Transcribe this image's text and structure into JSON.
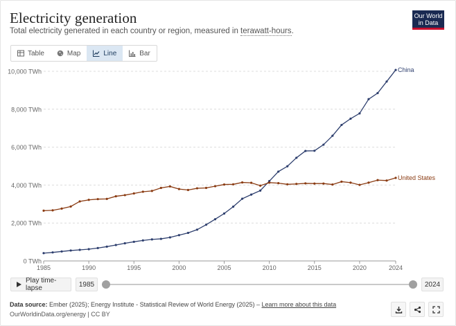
{
  "header": {
    "title": "Electricity generation",
    "subtitle_prefix": "Total electricity generated in each country or region, measured in ",
    "subtitle_term": "terawatt-hours",
    "subtitle_suffix": "."
  },
  "logo": {
    "line1": "Our World",
    "line2": "in Data",
    "bg": "#1a2a52",
    "accent": "#c8102e"
  },
  "tabs": [
    {
      "label": "Table",
      "icon": "table-icon",
      "active": false
    },
    {
      "label": "Map",
      "icon": "globe-icon",
      "active": false
    },
    {
      "label": "Line",
      "icon": "line-chart-icon",
      "active": true
    },
    {
      "label": "Bar",
      "icon": "bar-chart-icon",
      "active": false
    }
  ],
  "timeline": {
    "play_label": "Play time-lapse",
    "start": "1985",
    "end": "2024"
  },
  "footer": {
    "source_label": "Data source:",
    "source_text": " Ember (2025); Energy Institute - Statistical Review of World Energy (2025) – ",
    "learn_more": "Learn more about this data",
    "credit": "OurWorldinData.org/energy | CC BY"
  },
  "chart_data": {
    "type": "line",
    "ylim": [
      0,
      10000
    ],
    "xlim": [
      1985,
      2024
    ],
    "grid": "horizontal",
    "y_ticks": [
      {
        "value": 0,
        "label": "0 TWh"
      },
      {
        "value": 2000,
        "label": "2,000 TWh"
      },
      {
        "value": 4000,
        "label": "4,000 TWh"
      },
      {
        "value": 6000,
        "label": "6,000 TWh"
      },
      {
        "value": 8000,
        "label": "8,000 TWh"
      },
      {
        "value": 10000,
        "label": "10,000 TWh"
      }
    ],
    "x_ticks": [
      1985,
      1990,
      1995,
      2000,
      2005,
      2010,
      2015,
      2020,
      2024
    ],
    "x": [
      1985,
      1986,
      1987,
      1988,
      1989,
      1990,
      1991,
      1992,
      1993,
      1994,
      1995,
      1996,
      1997,
      1998,
      1999,
      2000,
      2001,
      2002,
      2003,
      2004,
      2005,
      2006,
      2007,
      2008,
      2009,
      2010,
      2011,
      2012,
      2013,
      2014,
      2015,
      2016,
      2017,
      2018,
      2019,
      2020,
      2021,
      2022,
      2023,
      2024
    ],
    "series": [
      {
        "name": "China",
        "color": "#2e3f6e",
        "values": [
          410,
          450,
          500,
          550,
          585,
          620,
          680,
          755,
          840,
          930,
          1010,
          1080,
          1135,
          1165,
          1240,
          1360,
          1480,
          1650,
          1910,
          2200,
          2500,
          2860,
          3280,
          3500,
          3710,
          4210,
          4710,
          4990,
          5440,
          5800,
          5810,
          6130,
          6600,
          7170,
          7500,
          7780,
          8530,
          8850,
          9460,
          10070
        ]
      },
      {
        "name": "United States",
        "color": "#8a3b12",
        "values": [
          2650,
          2670,
          2760,
          2870,
          3140,
          3220,
          3260,
          3270,
          3410,
          3470,
          3560,
          3650,
          3690,
          3850,
          3930,
          3790,
          3740,
          3830,
          3850,
          3940,
          4030,
          4040,
          4140,
          4120,
          3970,
          4130,
          4100,
          4040,
          4060,
          4090,
          4080,
          4080,
          4030,
          4180,
          4130,
          4010,
          4130,
          4260,
          4240,
          4380
        ]
      }
    ]
  }
}
